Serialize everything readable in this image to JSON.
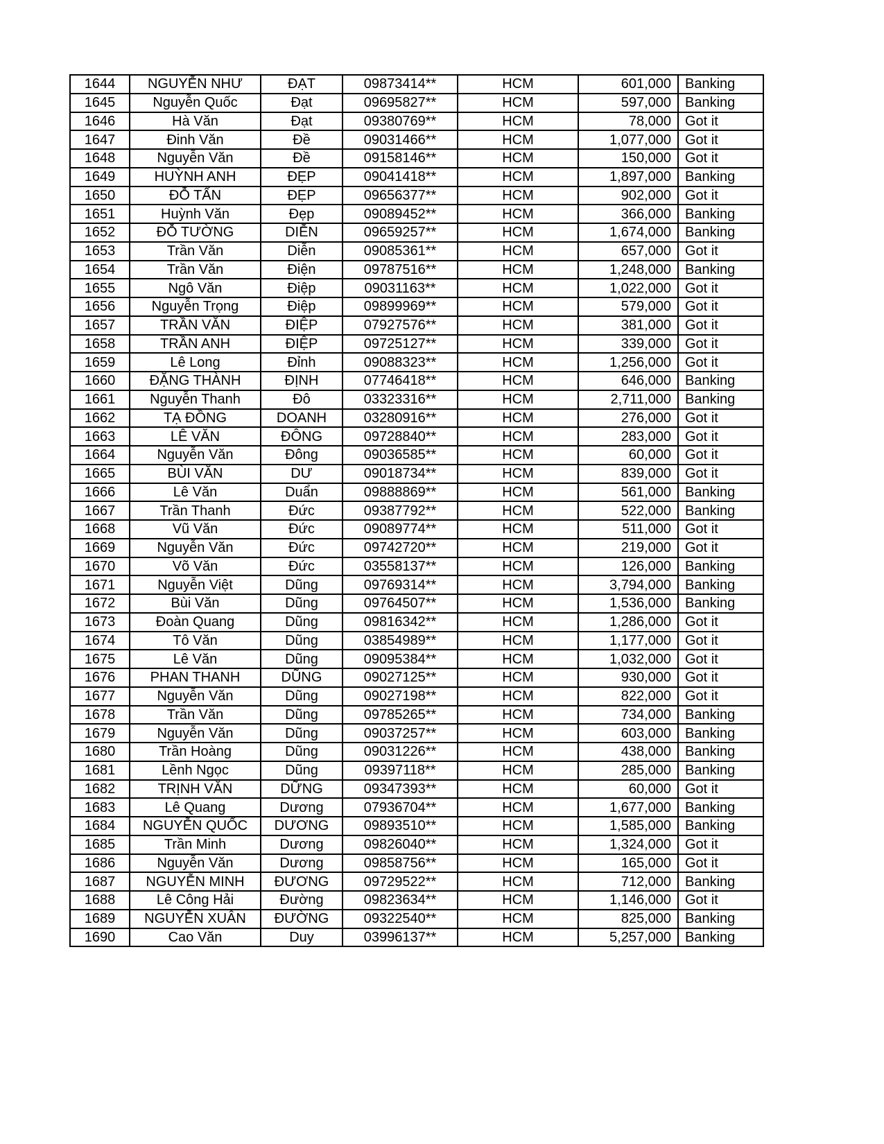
{
  "table": {
    "rows": [
      [
        "1644",
        "NGUYỄN NHƯ",
        "ĐẠT",
        "09873414**",
        "HCM",
        "601,000",
        "Banking"
      ],
      [
        "1645",
        "Nguyễn Quốc",
        "Đạt",
        "09695827**",
        "HCM",
        "597,000",
        "Banking"
      ],
      [
        "1646",
        "Hà Văn",
        "Đạt",
        "09380769**",
        "HCM",
        "78,000",
        "Got it"
      ],
      [
        "1647",
        "Đinh  Văn",
        "Đề",
        "09031466**",
        "HCM",
        "1,077,000",
        "Got it"
      ],
      [
        "1648",
        "Nguyễn Văn",
        "Đề",
        "09158146**",
        "HCM",
        "150,000",
        "Got it"
      ],
      [
        "1649",
        "HUỲNH ANH",
        "ĐẸP",
        "09041418**",
        "HCM",
        "1,897,000",
        "Banking"
      ],
      [
        "1650",
        "ĐỖ TẤN",
        "ĐẸP",
        "09656377**",
        "HCM",
        "902,000",
        "Got it"
      ],
      [
        "1651",
        "Huỳnh Văn",
        "Đẹp",
        "09089452**",
        "HCM",
        "366,000",
        "Banking"
      ],
      [
        "1652",
        "ĐỖ TƯỜNG",
        "DIỄN",
        "09659257**",
        "HCM",
        "1,674,000",
        "Banking"
      ],
      [
        "1653",
        "Trần Văn",
        "Diễn",
        "09085361**",
        "HCM",
        "657,000",
        "Got it"
      ],
      [
        "1654",
        "Trần Văn",
        "Điện",
        "09787516**",
        "HCM",
        "1,248,000",
        "Banking"
      ],
      [
        "1655",
        "Ngô Văn",
        "Điệp",
        "09031163**",
        "HCM",
        "1,022,000",
        "Got it"
      ],
      [
        "1656",
        "Nguyễn Trọng",
        "Điệp",
        "09899969**",
        "HCM",
        "579,000",
        "Got it"
      ],
      [
        "1657",
        "TRẦN VĂN",
        "ĐIỆP",
        "07927576**",
        "HCM",
        "381,000",
        "Got it"
      ],
      [
        "1658",
        "TRẦN ANH",
        "ĐIỆP",
        "09725127**",
        "HCM",
        "339,000",
        "Got it"
      ],
      [
        "1659",
        "Lê Long",
        "Đỉnh",
        "09088323**",
        "HCM",
        "1,256,000",
        "Got it"
      ],
      [
        "1660",
        "ĐẶNG THÀNH",
        "ĐỊNH",
        "07746418**",
        "HCM",
        "646,000",
        "Banking"
      ],
      [
        "1661",
        "Nguyễn Thanh",
        "Đô",
        "03323316**",
        "HCM",
        "2,711,000",
        "Banking"
      ],
      [
        "1662",
        "TẠ ĐỒNG",
        "DOANH",
        "03280916**",
        "HCM",
        "276,000",
        "Got it"
      ],
      [
        "1663",
        "LÊ VĂN",
        "ĐÔNG",
        "09728840**",
        "HCM",
        "283,000",
        "Got it"
      ],
      [
        "1664",
        "Nguyễn Văn",
        "Đông",
        "09036585**",
        "HCM",
        "60,000",
        "Got it"
      ],
      [
        "1665",
        "BÙI VĂN",
        "DƯ",
        "09018734**",
        "HCM",
        "839,000",
        "Got it"
      ],
      [
        "1666",
        "Lê Văn",
        "Duẩn",
        "09888869**",
        "HCM",
        "561,000",
        "Banking"
      ],
      [
        "1667",
        "Trần Thanh",
        "Đức",
        "09387792**",
        "HCM",
        "522,000",
        "Banking"
      ],
      [
        "1668",
        "Vũ Văn",
        "Đức",
        "09089774**",
        "HCM",
        "511,000",
        "Got it"
      ],
      [
        "1669",
        "Nguyễn Văn",
        "Đức",
        "09742720**",
        "HCM",
        "219,000",
        "Got it"
      ],
      [
        "1670",
        "Võ Văn",
        "Đức",
        "03558137**",
        "HCM",
        "126,000",
        "Banking"
      ],
      [
        "1671",
        "Nguyễn Việt",
        "Dũng",
        "09769314**",
        "HCM",
        "3,794,000",
        "Banking"
      ],
      [
        "1672",
        "Bùi Văn",
        "Dũng",
        "09764507**",
        "HCM",
        "1,536,000",
        "Banking"
      ],
      [
        "1673",
        "Đoàn Quang",
        "Dũng",
        "09816342**",
        "HCM",
        "1,286,000",
        "Got it"
      ],
      [
        "1674",
        "Tô Văn",
        "Dũng",
        "03854989**",
        "HCM",
        "1,177,000",
        "Got it"
      ],
      [
        "1675",
        "Lê Văn",
        "Dũng",
        "09095384**",
        "HCM",
        "1,032,000",
        "Got it"
      ],
      [
        "1676",
        "PHAN THANH",
        "DŨNG",
        "09027125**",
        "HCM",
        "930,000",
        "Got it"
      ],
      [
        "1677",
        "Nguyễn Văn",
        "Dũng",
        "09027198**",
        "HCM",
        "822,000",
        "Got it"
      ],
      [
        "1678",
        "Trần Văn",
        "Dũng",
        "09785265**",
        "HCM",
        "734,000",
        "Banking"
      ],
      [
        "1679",
        "Nguyễn Văn",
        "Dũng",
        "09037257**",
        "HCM",
        "603,000",
        "Banking"
      ],
      [
        "1680",
        "Trần Hoàng",
        "Dũng",
        "09031226**",
        "HCM",
        "438,000",
        "Banking"
      ],
      [
        "1681",
        "Lềnh Ngọc",
        "Dũng",
        "09397118**",
        "HCM",
        "285,000",
        "Banking"
      ],
      [
        "1682",
        "TRỊNH VĂN",
        "DỮNG",
        "09347393**",
        "HCM",
        "60,000",
        "Got it"
      ],
      [
        "1683",
        "Lê Quang",
        "Dương",
        "07936704**",
        "HCM",
        "1,677,000",
        "Banking"
      ],
      [
        "1684",
        "NGUYỄN QUỐC",
        "DƯƠNG",
        "09893510**",
        "HCM",
        "1,585,000",
        "Banking"
      ],
      [
        "1685",
        "Trần Minh",
        "Dương",
        "09826040**",
        "HCM",
        "1,324,000",
        "Got it"
      ],
      [
        "1686",
        "Nguyễn Văn",
        "Dương",
        "09858756**",
        "HCM",
        "165,000",
        "Got it"
      ],
      [
        "1687",
        "NGUYỄN MINH",
        "ĐƯƠNG",
        "09729522**",
        "HCM",
        "712,000",
        "Banking"
      ],
      [
        "1688",
        "Lê Công Hải",
        "Đường",
        "09823634**",
        "HCM",
        "1,146,000",
        "Got it"
      ],
      [
        "1689",
        "NGUYỄN XUÂN",
        "ĐƯỜNG",
        "09322540**",
        "HCM",
        "825,000",
        "Banking"
      ],
      [
        "1690",
        "Cao Văn",
        "Duy",
        "03996137**",
        "HCM",
        "5,257,000",
        "Banking"
      ]
    ]
  }
}
